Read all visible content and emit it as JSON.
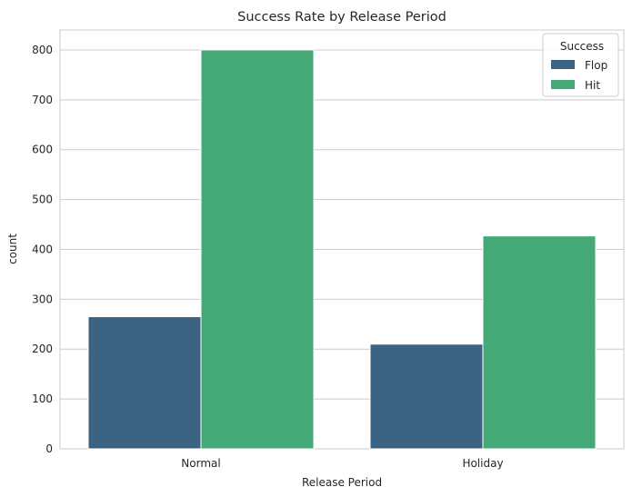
{
  "chart_data": {
    "type": "bar",
    "title": "Success Rate by Release Period",
    "xlabel": "Release Period",
    "ylabel": "count",
    "categories": [
      "Normal",
      "Holiday"
    ],
    "series": [
      {
        "name": "Flop",
        "values": [
          265,
          210
        ],
        "color": "#3b6383"
      },
      {
        "name": "Hit",
        "values": [
          800,
          427
        ],
        "color": "#45a877"
      }
    ],
    "ylim": [
      0,
      840
    ],
    "yticks": [
      0,
      100,
      200,
      300,
      400,
      500,
      600,
      700,
      800
    ],
    "grid": true,
    "legend": {
      "title": "Success",
      "placement": "top-right"
    }
  }
}
